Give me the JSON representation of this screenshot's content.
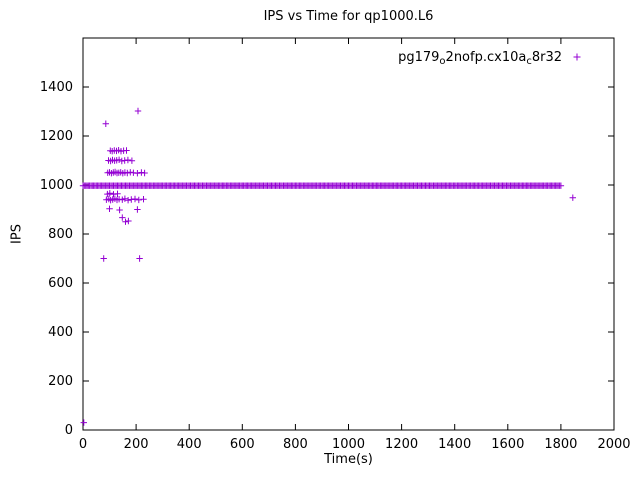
{
  "chart_data": {
    "type": "scatter",
    "title": "IPS vs Time for qp1000.L6",
    "xlabel": "Time(s)",
    "ylabel": "IPS",
    "xlim": [
      0,
      2000
    ],
    "ylim": [
      0,
      1600
    ],
    "xticks": [
      0,
      200,
      400,
      600,
      800,
      1000,
      1200,
      1400,
      1600,
      1800,
      2000
    ],
    "yticks": [
      0,
      200,
      400,
      600,
      800,
      1000,
      1200,
      1400
    ],
    "grid": false,
    "legend_position": "top-right-inside",
    "marker": "plus",
    "color": "#9400d3",
    "axis_color": "#000000",
    "legend": {
      "plain": "pg179o2nofp.cx10ac8r32",
      "segments": [
        {
          "t": "pg179"
        },
        {
          "t": "o",
          "sub": true
        },
        {
          "t": "2nofp.cx10a"
        },
        {
          "t": "c",
          "sub": true
        },
        {
          "t": "8r32"
        }
      ]
    },
    "series": [
      {
        "name": "pg179o2nofp.cx10ac8r32",
        "band": {
          "x_start": 0,
          "x_end": 1800,
          "y": 997,
          "step": 5
        },
        "points": [
          [
            3,
            30
          ],
          [
            78,
            700
          ],
          [
            213,
            700
          ],
          [
            148,
            867
          ],
          [
            160,
            850
          ],
          [
            171,
            853
          ],
          [
            100,
            903
          ],
          [
            138,
            898
          ],
          [
            205,
            900
          ],
          [
            88,
            940
          ],
          [
            97,
            943
          ],
          [
            104,
            938
          ],
          [
            112,
            941
          ],
          [
            120,
            944
          ],
          [
            128,
            939
          ],
          [
            136,
            942
          ],
          [
            148,
            940
          ],
          [
            158,
            944
          ],
          [
            170,
            938
          ],
          [
            182,
            941
          ],
          [
            196,
            943
          ],
          [
            210,
            939
          ],
          [
            228,
            942
          ],
          [
            92,
            963
          ],
          [
            101,
            966
          ],
          [
            115,
            962
          ],
          [
            130,
            964
          ],
          [
            93,
            1050
          ],
          [
            100,
            1052
          ],
          [
            107,
            1048
          ],
          [
            114,
            1051
          ],
          [
            121,
            1053
          ],
          [
            128,
            1049
          ],
          [
            135,
            1050
          ],
          [
            142,
            1052
          ],
          [
            150,
            1048
          ],
          [
            158,
            1051
          ],
          [
            167,
            1049
          ],
          [
            178,
            1052
          ],
          [
            190,
            1050
          ],
          [
            205,
            1048
          ],
          [
            220,
            1051
          ],
          [
            232,
            1049
          ],
          [
            96,
            1100
          ],
          [
            104,
            1098
          ],
          [
            111,
            1102
          ],
          [
            119,
            1099
          ],
          [
            127,
            1101
          ],
          [
            136,
            1103
          ],
          [
            146,
            1098
          ],
          [
            157,
            1100
          ],
          [
            169,
            1102
          ],
          [
            184,
            1099
          ],
          [
            103,
            1140
          ],
          [
            110,
            1138
          ],
          [
            118,
            1141
          ],
          [
            126,
            1139
          ],
          [
            134,
            1142
          ],
          [
            143,
            1138
          ],
          [
            153,
            1140
          ],
          [
            164,
            1141
          ],
          [
            86,
            1250
          ],
          [
            207,
            1302
          ],
          [
            1845,
            948
          ]
        ]
      }
    ]
  }
}
